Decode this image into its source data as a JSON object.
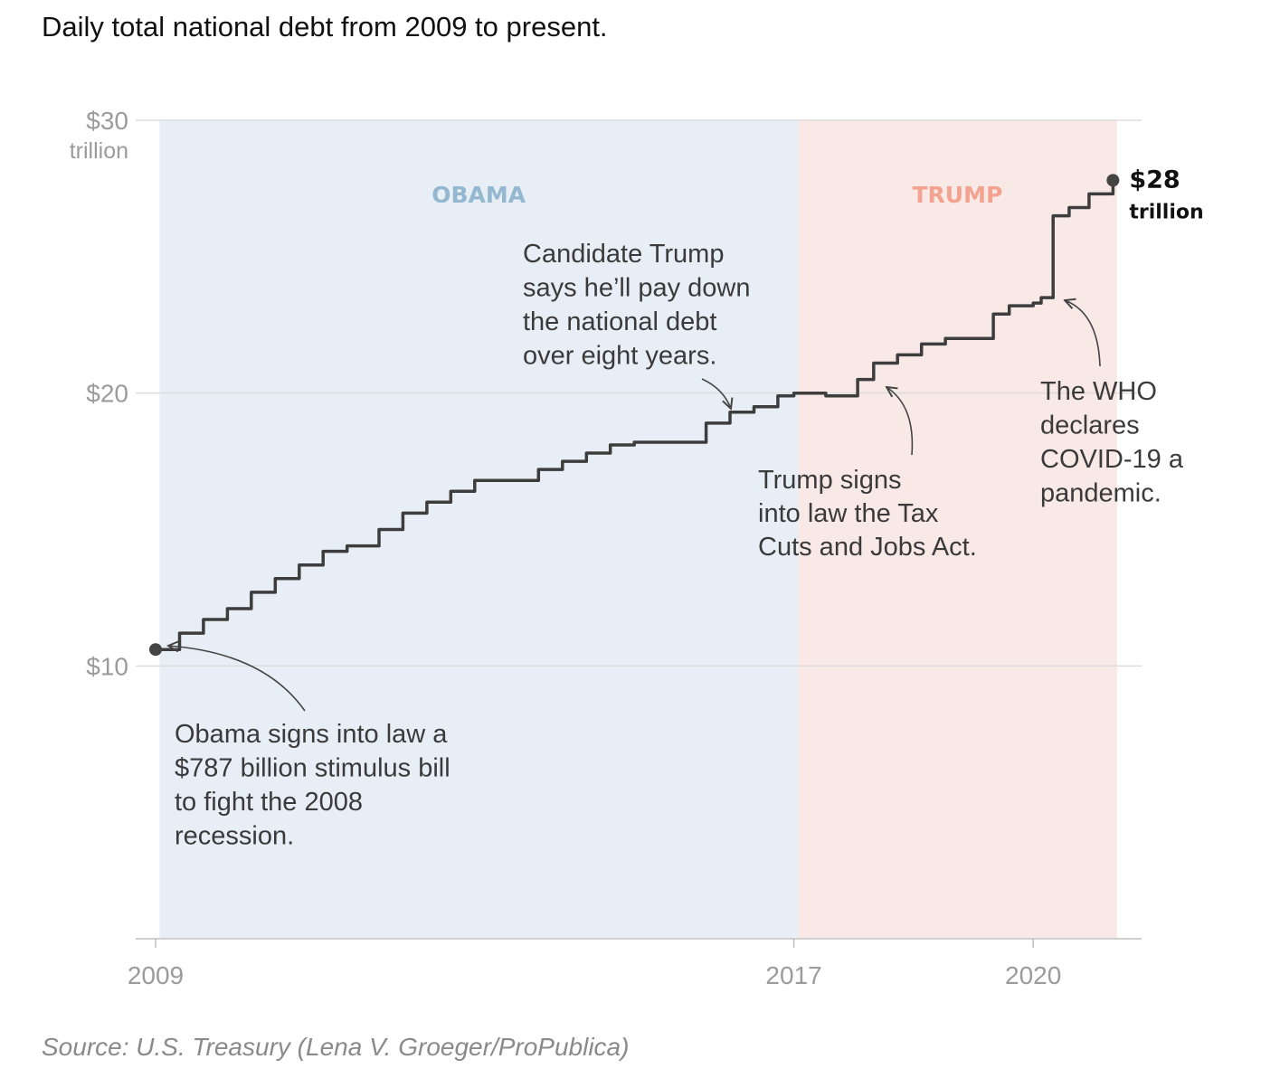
{
  "page": {
    "title": "Daily total national debt from 2009 to present.",
    "source": "Source: U.S. Treasury (Lena V. Groeger/ProPublica)"
  },
  "chart_data": {
    "type": "line",
    "title": "Daily total national debt from 2009 to present.",
    "xlabel": "",
    "ylabel": "",
    "xlim": [
      2009,
      2021.2
    ],
    "ylim": [
      0,
      30
    ],
    "grid": true,
    "y_ticks": [
      {
        "value": 30,
        "label": "$30",
        "sub": "trillion"
      },
      {
        "value": 20,
        "label": "$20",
        "sub": ""
      },
      {
        "value": 10,
        "label": "$10",
        "sub": ""
      }
    ],
    "x_ticks": [
      {
        "value": 2009,
        "label": "2009"
      },
      {
        "value": 2017,
        "label": "2017"
      },
      {
        "value": 2020,
        "label": "2020"
      }
    ],
    "regions": [
      {
        "name": "OBAMA",
        "start": 2009.05,
        "end": 2017.05,
        "fill": "#e7eef5",
        "label_color": "#93b8d0"
      },
      {
        "name": "TRUMP",
        "start": 2017.05,
        "end": 2021.05,
        "fill": "#f8e9e6",
        "label_color": "#f2a28e"
      }
    ],
    "series": [
      {
        "color": "#3d3d3d",
        "x": [
          2009.0,
          2009.3,
          2009.6,
          2009.9,
          2010.2,
          2010.5,
          2010.8,
          2011.1,
          2011.4,
          2011.6,
          2011.8,
          2012.1,
          2012.4,
          2012.7,
          2013.0,
          2013.3,
          2013.5,
          2013.8,
          2014.1,
          2014.4,
          2014.7,
          2015.0,
          2015.3,
          2015.6,
          2015.8,
          2015.9,
          2016.2,
          2016.5,
          2016.8,
          2017.0,
          2017.4,
          2017.5,
          2017.8,
          2018.0,
          2018.3,
          2018.6,
          2018.9,
          2019.3,
          2019.5,
          2019.7,
          2020.0,
          2020.1,
          2020.25,
          2020.45,
          2020.7,
          2021.0
        ],
        "y": [
          10.6,
          11.2,
          11.7,
          12.1,
          12.7,
          13.2,
          13.7,
          14.2,
          14.4,
          14.4,
          15.0,
          15.6,
          16.0,
          16.4,
          16.8,
          16.8,
          16.8,
          17.2,
          17.5,
          17.8,
          18.1,
          18.2,
          18.2,
          18.2,
          18.2,
          18.9,
          19.3,
          19.5,
          19.9,
          20.0,
          19.9,
          19.9,
          20.5,
          21.1,
          21.4,
          21.8,
          22.0,
          22.0,
          22.9,
          23.2,
          23.3,
          23.5,
          26.5,
          26.8,
          27.3,
          27.8
        ]
      }
    ],
    "end_label": [
      "$28",
      "trillion"
    ],
    "annotations": [
      {
        "text": [
          "Obama signs into law a",
          "$787 billion stimulus bill",
          "to fight the 2008",
          "recession."
        ],
        "x": 2009.0,
        "y": 10.6
      },
      {
        "text": [
          "Candidate Trump",
          "says he’ll pay down",
          "the national debt",
          "over eight years."
        ],
        "x": 2016.45,
        "y": 19.35
      },
      {
        "text": [
          "Trump signs",
          "into law the Tax",
          "Cuts and Jobs Act."
        ],
        "x": 2018.1,
        "y": 20.3
      },
      {
        "text": [
          "The WHO",
          "declares",
          "COVID-19 a",
          "pandemic."
        ],
        "x": 2020.25,
        "y": 23.5
      }
    ]
  }
}
